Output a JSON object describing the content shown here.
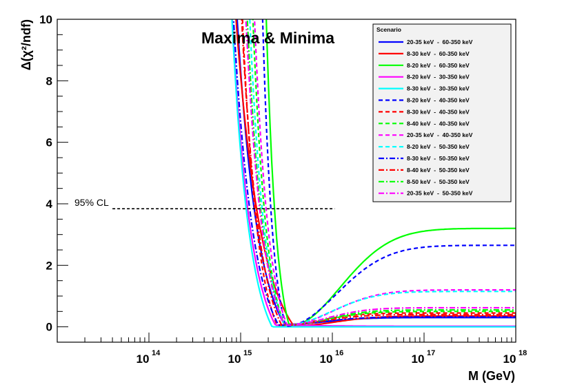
{
  "chart_data": {
    "type": "line",
    "title": "Maxima & Minima",
    "xlabel": "M (GeV)",
    "ylabel": "Δ(χ²/ndf)",
    "xscale": "log",
    "xlim": [
      10000000000000.0,
      1e+18
    ],
    "ylim": [
      -0.5,
      10
    ],
    "x_tick_labels": [
      {
        "value": 100000000000000.0,
        "base": "10",
        "exp": "14"
      },
      {
        "value": 1000000000000000.0,
        "base": "10",
        "exp": "15"
      },
      {
        "value": 1e+16,
        "base": "10",
        "exp": "16"
      },
      {
        "value": 1e+17,
        "base": "10",
        "exp": "17"
      },
      {
        "value": 1e+18,
        "base": "10",
        "exp": "18"
      }
    ],
    "y_ticks": [
      0,
      2,
      4,
      6,
      8,
      10
    ],
    "y_tick_labels": [
      "0",
      "2",
      "4",
      "6",
      "8",
      "10"
    ],
    "legend_title": "Scenario",
    "legend_position": "top-right",
    "cl_line": {
      "label": "95% CL",
      "y": 3.84,
      "x_start": 40000000000000.0,
      "x_end": 1.06e+16,
      "color": "#000000"
    },
    "series": [
      {
        "name": "20-35 keV  -  60-350 keV",
        "color": "#0000ff",
        "dash": "solid",
        "min_x": 3000000000000000.0,
        "min_y": 0.08,
        "plateau": 0.3,
        "slope": 4.4,
        "rise_w": 0.45
      },
      {
        "name": "8-30 keV  -  60-350 keV",
        "color": "#ff0000",
        "dash": "solid",
        "min_x": 3800000000000000.0,
        "min_y": 0.03,
        "plateau": 0.35,
        "slope": 3.6,
        "rise_w": 0.45
      },
      {
        "name": "8-20 keV  -  60-350 keV",
        "color": "#00ff00",
        "dash": "solid",
        "min_x": 3400000000000000.0,
        "min_y": 0.02,
        "plateau": 3.2,
        "slope": 9.0,
        "rise_w": 0.55
      },
      {
        "name": "8-20 keV  -  30-350 keV",
        "color": "#ff00ff",
        "dash": "solid",
        "min_x": 2400000000000000.0,
        "min_y": 0.05,
        "plateau": 0.02,
        "slope": 4.8,
        "rise_w": 0.45
      },
      {
        "name": "8-30 keV  -  30-350 keV",
        "color": "#00ffff",
        "dash": "solid",
        "min_x": 2200000000000000.0,
        "min_y": 0.0,
        "plateau": 0.0,
        "slope": 5.2,
        "rise_w": 0.45
      },
      {
        "name": "8-20 keV  -  40-350 keV",
        "color": "#0000ff",
        "dash": "dash",
        "min_x": 3100000000000000.0,
        "min_y": 0.02,
        "plateau": 2.65,
        "slope": 9.0,
        "rise_w": 0.55
      },
      {
        "name": "8-30 keV  -  40-350 keV",
        "color": "#ff0000",
        "dash": "dash",
        "min_x": 2500000000000000.0,
        "min_y": 0.05,
        "plateau": 0.45,
        "slope": 6.0,
        "rise_w": 0.45
      },
      {
        "name": "8-40 keV  -  40-350 keV",
        "color": "#00ff00",
        "dash": "dash",
        "min_x": 3000000000000000.0,
        "min_y": 0.05,
        "plateau": 0.5,
        "slope": 6.6,
        "rise_w": 0.45
      },
      {
        "name": "20-35 keV  -  40-350 keV",
        "color": "#ff00ff",
        "dash": "dash",
        "min_x": 3200000000000000.0,
        "min_y": 0.06,
        "plateau": 1.2,
        "slope": 6.4,
        "rise_w": 0.5
      },
      {
        "name": "8-20 keV  -  50-350 keV",
        "color": "#00ffff",
        "dash": "dash",
        "min_x": 3000000000000000.0,
        "min_y": 0.05,
        "plateau": 1.15,
        "slope": 6.0,
        "rise_w": 0.5
      },
      {
        "name": "8-30 keV  -  50-350 keV",
        "color": "#0000ff",
        "dash": "dashdot",
        "min_x": 2600000000000000.0,
        "min_y": 0.05,
        "plateau": 0.32,
        "slope": 4.6,
        "rise_w": 0.45
      },
      {
        "name": "8-40 keV  -  50-350 keV",
        "color": "#ff0000",
        "dash": "dashdot",
        "min_x": 2800000000000000.0,
        "min_y": 0.05,
        "plateau": 0.4,
        "slope": 5.2,
        "rise_w": 0.45
      },
      {
        "name": "8-50 keV  -  50-350 keV",
        "color": "#00ff00",
        "dash": "dashdot",
        "min_x": 3000000000000000.0,
        "min_y": 0.05,
        "plateau": 0.55,
        "slope": 5.6,
        "rise_w": 0.45
      },
      {
        "name": "20-35 keV  -  50-350 keV",
        "color": "#ff00ff",
        "dash": "dashdot",
        "min_x": 3000000000000000.0,
        "min_y": 0.05,
        "plateau": 0.62,
        "slope": 5.4,
        "rise_w": 0.45
      }
    ]
  }
}
